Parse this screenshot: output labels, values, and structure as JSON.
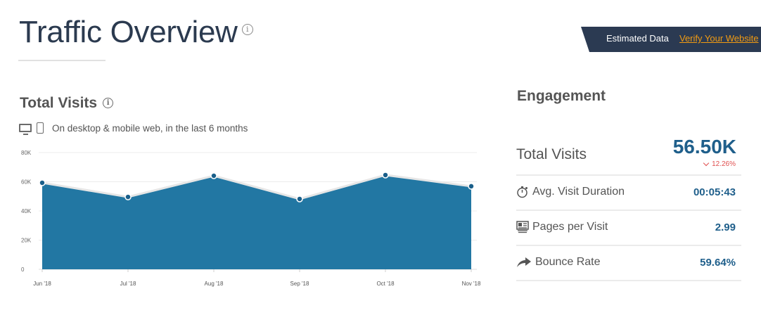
{
  "header": {
    "title": "Traffic Overview",
    "info_icon": "info-circle-icon"
  },
  "banner": {
    "label": "Estimated Data",
    "link": "Verify Your Website"
  },
  "total_visits_section": {
    "title": "Total Visits",
    "info_icon": "info-circle-icon",
    "devices_icons": [
      "desktop-icon",
      "mobile-icon"
    ],
    "subtitle": "On desktop & mobile web, in the last 6 months"
  },
  "engagement": {
    "title": "Engagement",
    "total_visits": {
      "label": "Total Visits",
      "value": "56.50K",
      "change": "12.26%",
      "change_direction": "down",
      "change_color": "#e05050"
    },
    "rows": [
      {
        "icon": "stopwatch-icon",
        "label": "Avg. Visit Duration",
        "value": "00:05:43"
      },
      {
        "icon": "pages-icon",
        "label": "Pages per Visit",
        "value": "2.99"
      },
      {
        "icon": "bounce-arrow-icon",
        "label": "Bounce Rate",
        "value": "59.64%"
      }
    ]
  },
  "colors": {
    "area_fill": "#2277a3",
    "value_blue": "#1f5f8b",
    "title_dark": "#2b3a4f",
    "banner_bg": "#2b3a52",
    "banner_link": "#f39c12"
  },
  "chart_data": {
    "type": "area",
    "title": "Total Visits",
    "xlabel": "",
    "ylabel": "",
    "categories": [
      "Jun '18",
      "Jul '18",
      "Aug '18",
      "Sep '18",
      "Oct '18",
      "Nov '18"
    ],
    "series": [
      {
        "name": "Total Visits",
        "values": [
          59300,
          49600,
          64100,
          48200,
          64600,
          56900
        ]
      }
    ],
    "y_ticks": [
      "0",
      "20K",
      "40K",
      "60K",
      "80K"
    ],
    "ylim": [
      0,
      80000
    ],
    "grid": true,
    "legend": "none"
  }
}
